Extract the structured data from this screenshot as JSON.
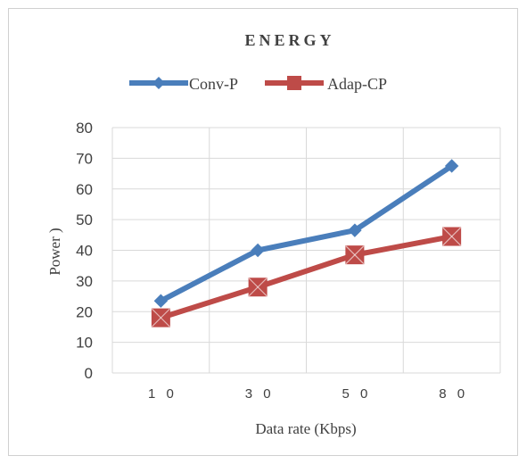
{
  "chart_data": {
    "type": "line",
    "title": "ENERGY",
    "xlabel": "Data rate (Kbps)",
    "ylabel": "Power )",
    "categories": [
      "1 0",
      "3 0",
      "5 0",
      "8 0"
    ],
    "ylim": [
      0,
      80
    ],
    "yticks": [
      0,
      10,
      20,
      30,
      40,
      50,
      60,
      70,
      80
    ],
    "grid": true,
    "legend_position": "top",
    "series": [
      {
        "name": "Conv-P",
        "values": [
          23.5,
          40,
          46.5,
          67.5
        ],
        "color": "#4a7ebb",
        "marker": "diamond"
      },
      {
        "name": "Adap-CP",
        "values": [
          18,
          28,
          38.5,
          44.5
        ],
        "color": "#be4b48",
        "marker": "square"
      }
    ]
  }
}
